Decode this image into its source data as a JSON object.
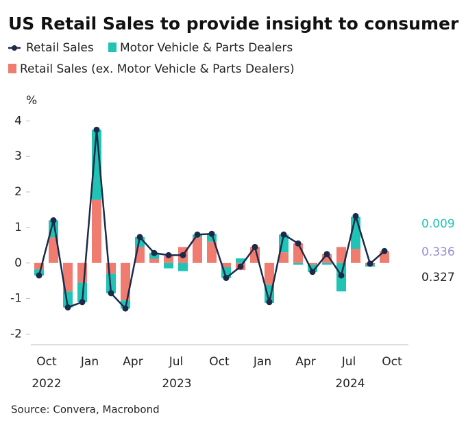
{
  "chart_data": {
    "type": "bar-line",
    "title": "US Retail Sales to provide insight to consumer",
    "ylabel": "%",
    "source": "Source: Convera, Macrobond",
    "categories": [
      null,
      "Oct",
      null,
      null,
      "Jan",
      null,
      null,
      "Apr",
      null,
      null,
      "Jul",
      null,
      null,
      "Oct",
      null,
      null,
      "Jan",
      null,
      null,
      "Apr",
      null,
      null,
      "Jul",
      null,
      null,
      "Oct"
    ],
    "years": [
      "2022",
      "2023",
      "2024"
    ],
    "ylim": [
      -2.3,
      4.2
    ],
    "yticks": [
      -2,
      -1,
      0,
      1,
      2,
      3,
      4
    ],
    "series": [
      {
        "name": "Retail Sales",
        "kind": "line",
        "color": "#1b2a4a",
        "label_color": "#9a8fd6",
        "values": [
          -0.35,
          1.2,
          -1.25,
          -1.1,
          3.75,
          -0.85,
          -1.28,
          0.73,
          0.28,
          0.22,
          0.22,
          0.8,
          0.82,
          -0.42,
          -0.1,
          0.45,
          -1.1,
          0.8,
          0.55,
          -0.25,
          0.25,
          -0.35,
          1.32,
          -0.02,
          0.336,
          null
        ]
      },
      {
        "name": "Motor Vehicle & Parts Dealers",
        "kind": "bar",
        "color": "#1fc4b5",
        "label_color": "#1fc4b5",
        "values": [
          -0.17,
          0.48,
          -0.45,
          -0.55,
          1.97,
          -0.55,
          -0.23,
          0.28,
          0.16,
          -0.15,
          -0.23,
          0.08,
          0.22,
          -0.3,
          0.13,
          0.0,
          -0.5,
          0.5,
          -0.05,
          -0.2,
          -0.05,
          -0.8,
          0.9,
          -0.05,
          0.009,
          null
        ]
      },
      {
        "name": "Retail Sales (ex. Motor Vehicle & Parts Dealers)",
        "kind": "bar",
        "color": "#f07c70",
        "label_color": "#222222",
        "values": [
          -0.18,
          0.72,
          -0.8,
          -0.55,
          1.78,
          -0.3,
          -1.05,
          0.45,
          0.12,
          0.2,
          0.45,
          0.72,
          0.6,
          -0.12,
          -0.2,
          0.45,
          -0.62,
          0.3,
          0.55,
          -0.05,
          0.25,
          0.45,
          0.4,
          -0.05,
          0.327,
          null
        ]
      }
    ]
  }
}
